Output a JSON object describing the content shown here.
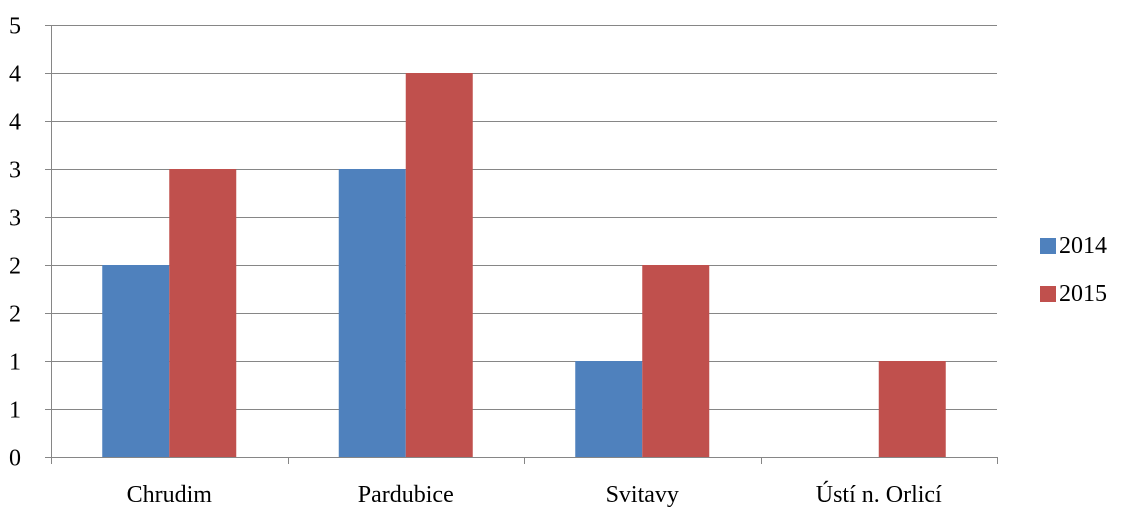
{
  "chart_data": {
    "type": "bar",
    "categories": [
      "Chrudim",
      "Pardubice",
      "Svitavy",
      "Ústí n. Orlicí"
    ],
    "series": [
      {
        "name": "2014",
        "values": [
          2,
          3,
          1,
          0
        ],
        "color": "#4F81BD"
      },
      {
        "name": "2015",
        "values": [
          3,
          4,
          2,
          1
        ],
        "color": "#C0504D"
      }
    ],
    "y_tick_labels": [
      "0",
      "1",
      "1",
      "2",
      "2",
      "3",
      "3",
      "4",
      "4",
      "5"
    ],
    "ylim": [
      0,
      4.5
    ],
    "grid": true,
    "legend_position": "right",
    "gridline_color": "#868686",
    "axis_color": "#868686"
  }
}
